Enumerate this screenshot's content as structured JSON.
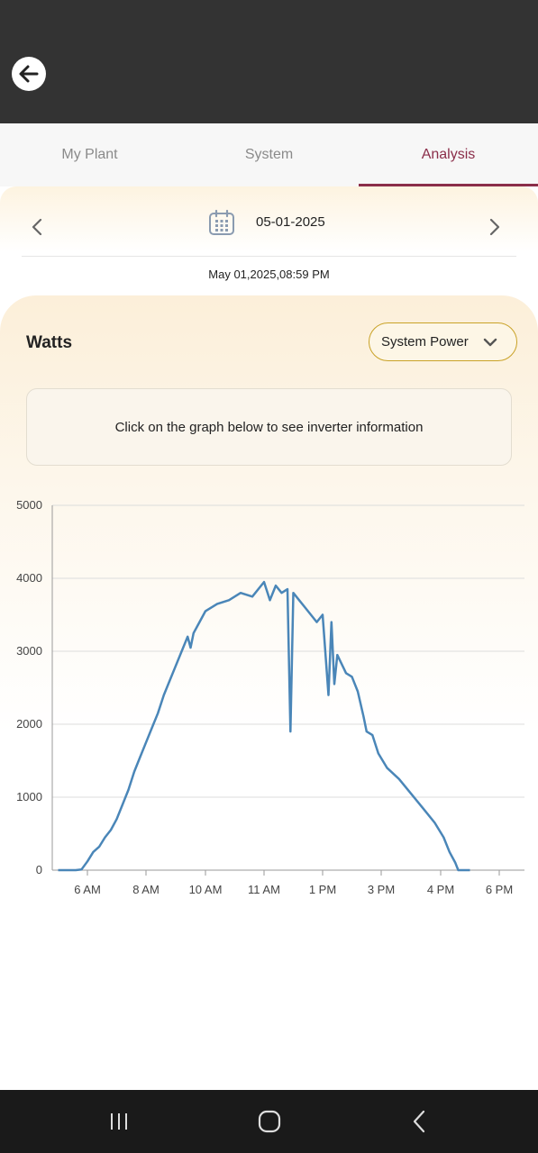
{
  "header": {
    "back_icon": "arrow-left-icon"
  },
  "tabs": [
    {
      "label": "My Plant",
      "active": false
    },
    {
      "label": "System",
      "active": false
    },
    {
      "label": "Analysis",
      "active": true
    }
  ],
  "date_nav": {
    "date": "05-01-2025",
    "timestamp": "May 01,2025,08:59 PM",
    "prev_icon": "chevron-left-icon",
    "next_icon": "chevron-right-icon",
    "calendar_icon": "calendar-icon"
  },
  "panel": {
    "unit_label": "Watts",
    "dropdown_value": "System Power",
    "info_text": "Click on the graph below to see inverter information"
  },
  "colors": {
    "accent": "#8b2e4a",
    "line": "#4a86b8",
    "dropdown_border": "#c9a227"
  },
  "chart_data": {
    "type": "line",
    "ylim": [
      0,
      5000
    ],
    "yticks": [
      "0",
      "1000",
      "2000",
      "3000",
      "4000",
      "5000"
    ],
    "xticks": [
      "6 AM",
      "8 AM",
      "10 AM",
      "11 AM",
      "1 PM",
      "3 PM",
      "4 PM",
      "6 PM"
    ],
    "grid": true,
    "series": [
      {
        "values": [
          [
            5.0,
            0
          ],
          [
            5.6,
            0
          ],
          [
            5.8,
            10
          ],
          [
            6.0,
            120
          ],
          [
            6.2,
            250
          ],
          [
            6.4,
            320
          ],
          [
            6.6,
            450
          ],
          [
            6.8,
            550
          ],
          [
            7.0,
            700
          ],
          [
            7.2,
            900
          ],
          [
            7.4,
            1100
          ],
          [
            7.6,
            1350
          ],
          [
            7.8,
            1550
          ],
          [
            8.0,
            1750
          ],
          [
            8.2,
            1950
          ],
          [
            8.4,
            2150
          ],
          [
            8.6,
            2400
          ],
          [
            8.8,
            2600
          ],
          [
            9.0,
            2800
          ],
          [
            9.2,
            3000
          ],
          [
            9.4,
            3200
          ],
          [
            9.5,
            3050
          ],
          [
            9.6,
            3250
          ],
          [
            9.8,
            3400
          ],
          [
            10.0,
            3550
          ],
          [
            10.2,
            3650
          ],
          [
            10.4,
            3700
          ],
          [
            10.6,
            3800
          ],
          [
            10.8,
            3750
          ],
          [
            11.0,
            3950
          ],
          [
            11.2,
            3700
          ],
          [
            11.4,
            3900
          ],
          [
            11.6,
            3800
          ],
          [
            11.8,
            3850
          ],
          [
            11.9,
            1900
          ],
          [
            12.0,
            3800
          ],
          [
            12.2,
            3700
          ],
          [
            12.4,
            3600
          ],
          [
            12.6,
            3500
          ],
          [
            12.8,
            3400
          ],
          [
            13.0,
            3500
          ],
          [
            13.2,
            2400
          ],
          [
            13.3,
            3400
          ],
          [
            13.4,
            2550
          ],
          [
            13.5,
            2950
          ],
          [
            13.8,
            2700
          ],
          [
            14.0,
            2650
          ],
          [
            14.2,
            2450
          ],
          [
            14.4,
            2100
          ],
          [
            14.5,
            1900
          ],
          [
            14.7,
            1850
          ],
          [
            14.9,
            1600
          ],
          [
            15.1,
            1400
          ],
          [
            15.3,
            1250
          ],
          [
            15.5,
            1050
          ],
          [
            15.7,
            850
          ],
          [
            15.9,
            650
          ],
          [
            16.1,
            450
          ],
          [
            16.3,
            250
          ],
          [
            16.5,
            100
          ],
          [
            16.6,
            0
          ],
          [
            17.0,
            0
          ]
        ]
      }
    ]
  }
}
